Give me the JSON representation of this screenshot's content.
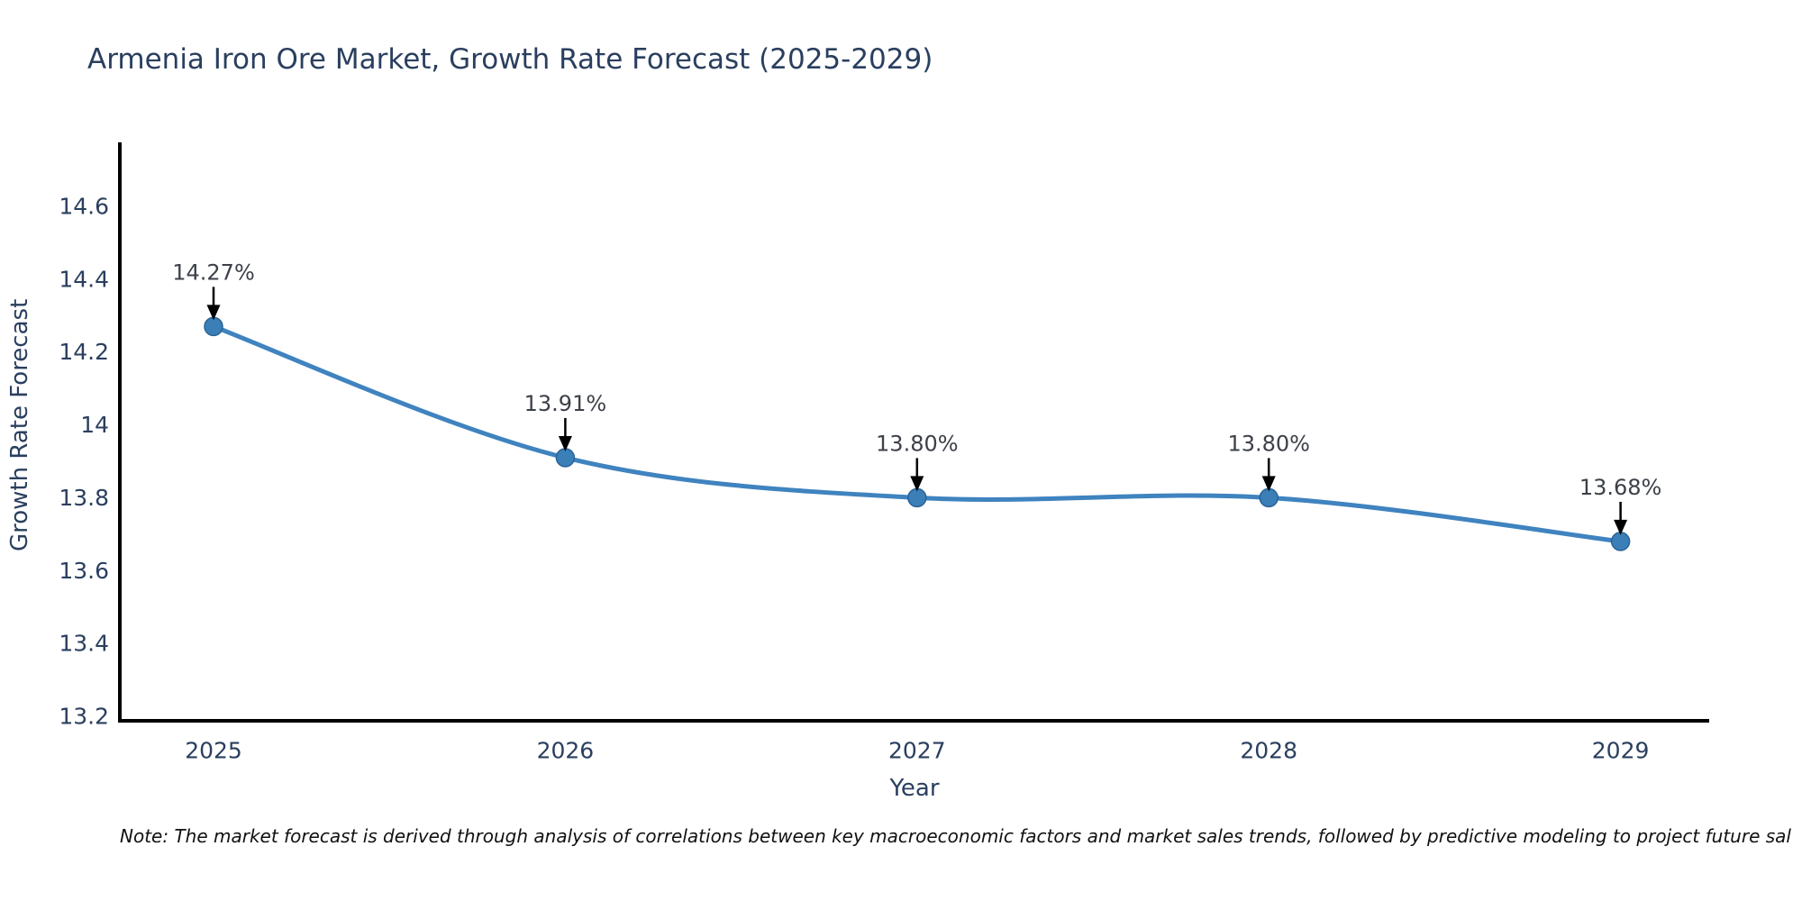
{
  "title": {
    "text": "Armenia Iron Ore Market, Growth Rate Forecast (2025-2029)"
  },
  "footnote": {
    "text": "Note: The market forecast is derived through analysis of correlations between key macroeconomic factors and market sales trends, followed by predictive modeling to project future sal"
  },
  "chart_data": {
    "type": "line",
    "x": [
      2025,
      2026,
      2027,
      2028,
      2029
    ],
    "series": [
      {
        "name": "Growth Rate Forecast",
        "values": [
          14.27,
          13.91,
          13.8,
          13.8,
          13.68
        ]
      }
    ],
    "point_labels": [
      "14.27%",
      "13.91%",
      "13.80%",
      "13.80%",
      "13.68%"
    ],
    "title": "Armenia Iron Ore Market, Growth Rate Forecast (2025-2029)",
    "xlabel": "Year",
    "ylabel": "Growth Rate Forecast",
    "yticks": [
      13.2,
      13.4,
      13.6,
      13.8,
      14,
      14.2,
      14.4,
      14.6
    ],
    "ytick_labels": [
      "13.2",
      "13.4",
      "13.6",
      "13.8",
      "14",
      "14.2",
      "14.4",
      "14.6"
    ],
    "ylim": [
      13.19,
      14.77
    ],
    "line_shape": "spline",
    "grid": false,
    "legend_visible": false,
    "colors": {
      "line": "#3f83bf",
      "marker_fill": "#3a7fb8",
      "marker_stroke": "#2a6396",
      "axis_line": "#000000",
      "tick_text": "#2a3f5f",
      "annotation_text": "#3c4048",
      "arrow": "#000000",
      "background": "#ffffff"
    }
  }
}
